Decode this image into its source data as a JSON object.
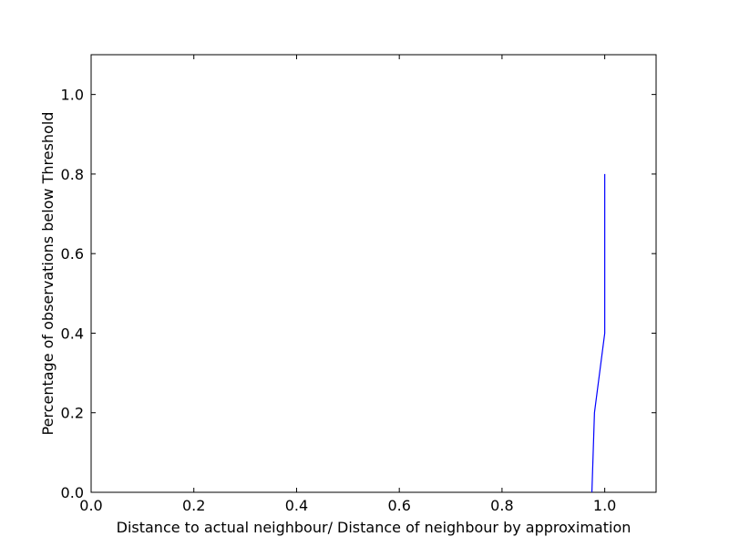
{
  "chart_data": {
    "type": "line",
    "title": "",
    "xlabel": "Distance to actual neighbour/ Distance of neighbour by approximation",
    "ylabel": "Percentage of observations below Threshold",
    "xlim": [
      0.0,
      1.1
    ],
    "ylim": [
      0.0,
      1.1
    ],
    "xticks": [
      0.0,
      0.2,
      0.4,
      0.6,
      0.8,
      1.0
    ],
    "xtick_labels": [
      "0.0",
      "0.2",
      "0.4",
      "0.6",
      "0.8",
      "1.0"
    ],
    "yticks": [
      0.0,
      0.2,
      0.4,
      0.6,
      0.8,
      1.0
    ],
    "ytick_labels": [
      "0.0",
      "0.2",
      "0.4",
      "0.6",
      "0.8",
      "1.0"
    ],
    "grid": false,
    "legend": "none",
    "series": [
      {
        "color": "#0000ff",
        "x": [
          0.975,
          0.98,
          1.0,
          1.0
        ],
        "y": [
          0.0,
          0.2,
          0.4,
          0.8
        ]
      }
    ]
  }
}
